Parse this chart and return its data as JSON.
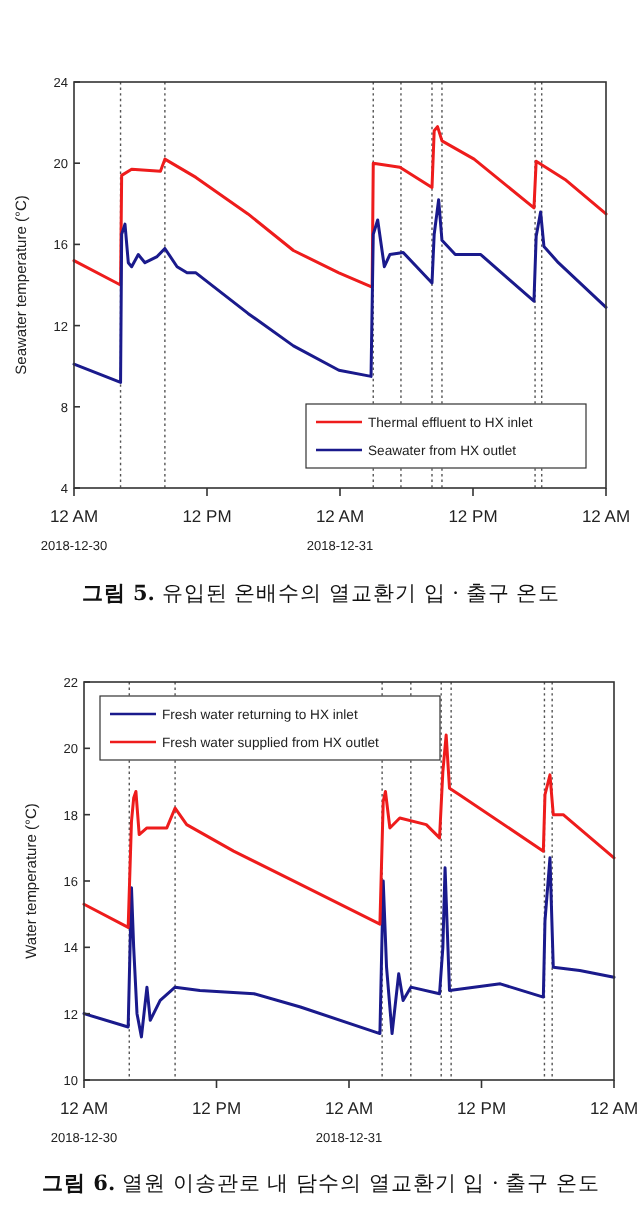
{
  "chart_data": [
    {
      "type": "line",
      "title": "**그림 5.** 유입된 온배수의 열교환기 입 · 출구 온도",
      "ylabel": "Seawater temperature (°C)",
      "xlim": [
        "2018-12-30T00:00",
        "2019-01-01T00:00"
      ],
      "ylim": [
        4,
        24
      ],
      "xticks": [
        {
          "value": "2018-12-30T00:00",
          "label": "12 AM"
        },
        {
          "value": "2018-12-30T12:00",
          "label": "12 PM"
        },
        {
          "value": "2018-12-31T00:00",
          "label": "12 AM"
        },
        {
          "value": "2018-12-31T12:00",
          "label": "12 PM"
        },
        {
          "value": "2019-01-01T00:00",
          "label": "12 AM"
        }
      ],
      "yticks": [
        4,
        8,
        12,
        16,
        20,
        24
      ],
      "legend": "bottom right",
      "marker": "none",
      "line_style": "solid",
      "annotations": [
        "2018-12-30",
        "2018-12-31"
      ],
      "ref_lines": [
        {
          "axis": "x",
          "value": "2018-12-30T04:12",
          "color": "#555555",
          "line_style": "dotted"
        },
        {
          "axis": "x",
          "value": "2018-12-30T08:12",
          "color": "#555555",
          "line_style": "dotted"
        },
        {
          "axis": "x",
          "value": "2018-12-31T03:00",
          "color": "#555555",
          "line_style": "dotted"
        },
        {
          "axis": "x",
          "value": "2018-12-31T05:30",
          "color": "#555555",
          "line_style": "dotted"
        },
        {
          "axis": "x",
          "value": "2018-12-31T08:18",
          "color": "#555555",
          "line_style": "dotted"
        },
        {
          "axis": "x",
          "value": "2018-12-31T09:12",
          "color": "#555555",
          "line_style": "dotted"
        },
        {
          "axis": "x",
          "value": "2018-12-31T17:36",
          "color": "#555555",
          "line_style": "dotted"
        },
        {
          "axis": "x",
          "value": "2018-12-31T18:12",
          "color": "#555555",
          "line_style": "dotted"
        }
      ],
      "series": [
        {
          "name": "Thermal effluent to HX inlet",
          "color": "#ee1c1c",
          "x": [
            "2018-12-30T00:00",
            "2018-12-30T04:12",
            "2018-12-30T04:18",
            "2018-12-30T05:12",
            "2018-12-30T07:48",
            "2018-12-30T08:12",
            "2018-12-30T11:00",
            "2018-12-30T15:42",
            "2018-12-30T19:48",
            "2018-12-30T23:54",
            "2018-12-31T02:54",
            "2018-12-31T03:00",
            "2018-12-31T05:24",
            "2018-12-31T08:18",
            "2018-12-31T08:30",
            "2018-12-31T08:48",
            "2018-12-31T09:12",
            "2018-12-31T12:06",
            "2018-12-31T17:30",
            "2018-12-31T17:42",
            "2018-12-31T20:18",
            "2019-01-01T00:00"
          ],
          "values": [
            15.2,
            14.0,
            19.4,
            19.7,
            19.6,
            20.2,
            19.3,
            17.5,
            15.7,
            14.6,
            13.9,
            20.0,
            19.8,
            18.8,
            21.6,
            21.8,
            21.1,
            20.2,
            17.8,
            20.1,
            19.2,
            17.5
          ]
        },
        {
          "name": "Seawater from HX outlet",
          "color": "#1a1a8c",
          "x": [
            "2018-12-30T00:00",
            "2018-12-30T04:12",
            "2018-12-30T04:18",
            "2018-12-30T04:36",
            "2018-12-30T04:54",
            "2018-12-30T05:12",
            "2018-12-30T05:48",
            "2018-12-30T06:24",
            "2018-12-30T07:30",
            "2018-12-30T08:12",
            "2018-12-30T09:18",
            "2018-12-30T10:12",
            "2018-12-30T11:00",
            "2018-12-30T15:42",
            "2018-12-30T19:48",
            "2018-12-30T23:54",
            "2018-12-31T02:48",
            "2018-12-31T03:00",
            "2018-12-31T03:24",
            "2018-12-31T04:00",
            "2018-12-31T04:30",
            "2018-12-31T05:42",
            "2018-12-31T08:18",
            "2018-12-31T08:30",
            "2018-12-31T08:54",
            "2018-12-31T09:12",
            "2018-12-31T10:24",
            "2018-12-31T12:42",
            "2018-12-31T17:30",
            "2018-12-31T17:42",
            "2018-12-31T18:06",
            "2018-12-31T18:24",
            "2018-12-31T19:42",
            "2019-01-01T00:00"
          ],
          "values": [
            10.1,
            9.2,
            16.5,
            17.0,
            15.1,
            14.9,
            15.5,
            15.1,
            15.4,
            15.8,
            14.9,
            14.6,
            14.6,
            12.6,
            11.0,
            9.8,
            9.5,
            16.5,
            17.2,
            14.9,
            15.5,
            15.6,
            14.1,
            16.5,
            18.2,
            16.2,
            15.5,
            15.5,
            13.2,
            16.4,
            17.6,
            15.9,
            15.1,
            12.9
          ]
        }
      ]
    },
    {
      "type": "line",
      "title": "**그림 6.** 열원 이송관로 내 담수의 열교환기 입 · 출구 온도",
      "ylabel": "Water temperature (°C)",
      "xlim": [
        "2018-12-30T00:00",
        "2019-01-01T00:00"
      ],
      "ylim": [
        10,
        22
      ],
      "xticks": [
        {
          "value": "2018-12-30T00:00",
          "label": "12 AM"
        },
        {
          "value": "2018-12-30T12:00",
          "label": "12 PM"
        },
        {
          "value": "2018-12-31T00:00",
          "label": "12 AM"
        },
        {
          "value": "2018-12-31T12:00",
          "label": "12 PM"
        },
        {
          "value": "2019-01-01T00:00",
          "label": "12 AM"
        }
      ],
      "yticks": [
        10,
        12,
        14,
        16,
        18,
        20,
        22
      ],
      "legend": "top left",
      "marker": "none",
      "line_style": "solid",
      "annotations": [
        "2018-12-30",
        "2018-12-31"
      ],
      "ref_lines": [
        {
          "axis": "x",
          "value": "2018-12-30T04:06",
          "color": "#555555",
          "line_style": "dotted"
        },
        {
          "axis": "x",
          "value": "2018-12-30T08:15",
          "color": "#555555",
          "line_style": "dotted"
        },
        {
          "axis": "x",
          "value": "2018-12-31T03:00",
          "color": "#555555",
          "line_style": "dotted"
        },
        {
          "axis": "x",
          "value": "2018-12-31T05:36",
          "color": "#555555",
          "line_style": "dotted"
        },
        {
          "axis": "x",
          "value": "2018-12-31T08:21",
          "color": "#555555",
          "line_style": "dotted"
        },
        {
          "axis": "x",
          "value": "2018-12-31T09:15",
          "color": "#555555",
          "line_style": "dotted"
        },
        {
          "axis": "x",
          "value": "2018-12-31T17:42",
          "color": "#555555",
          "line_style": "dotted"
        },
        {
          "axis": "x",
          "value": "2018-12-31T18:24",
          "color": "#555555",
          "line_style": "dotted"
        }
      ],
      "series": [
        {
          "name": "Fresh water returning to HX inlet",
          "color": "#1a1a8c",
          "x": [
            "2018-12-30T00:00",
            "2018-12-30T04:00",
            "2018-12-30T04:18",
            "2018-12-30T04:30",
            "2018-12-30T04:48",
            "2018-12-30T05:12",
            "2018-12-30T05:42",
            "2018-12-30T06:00",
            "2018-12-30T06:54",
            "2018-12-30T08:15",
            "2018-12-30T10:30",
            "2018-12-30T15:24",
            "2018-12-30T19:36",
            "2018-12-31T02:48",
            "2018-12-31T03:06",
            "2018-12-31T03:24",
            "2018-12-31T03:54",
            "2018-12-31T04:30",
            "2018-12-31T04:54",
            "2018-12-31T05:36",
            "2018-12-31T08:12",
            "2018-12-31T08:30",
            "2018-12-31T08:42",
            "2018-12-31T09:06",
            "2018-12-31T13:42",
            "2018-12-31T17:36",
            "2018-12-31T17:45",
            "2018-12-31T18:12",
            "2018-12-31T18:30",
            "2018-12-31T20:54",
            "2019-01-01T00:00"
          ],
          "values": [
            12.0,
            11.6,
            15.8,
            14.0,
            12.0,
            11.3,
            12.8,
            11.8,
            12.4,
            12.8,
            12.7,
            12.6,
            12.2,
            11.4,
            16.0,
            13.4,
            11.4,
            13.2,
            12.4,
            12.8,
            12.6,
            14.0,
            16.4,
            12.7,
            12.9,
            12.5,
            14.8,
            16.7,
            13.4,
            13.3,
            13.1
          ]
        },
        {
          "name": "Fresh water supplied from HX outlet",
          "color": "#ee1c1c",
          "x": [
            "2018-12-30T00:00",
            "2018-12-30T04:00",
            "2018-12-30T04:18",
            "2018-12-30T04:30",
            "2018-12-30T04:42",
            "2018-12-30T05:00",
            "2018-12-30T05:42",
            "2018-12-30T07:30",
            "2018-12-30T08:15",
            "2018-12-30T09:18",
            "2018-12-30T13:33",
            "2018-12-30T19:36",
            "2018-12-31T02:48",
            "2018-12-31T03:06",
            "2018-12-31T03:18",
            "2018-12-31T03:42",
            "2018-12-31T04:36",
            "2018-12-31T07:00",
            "2018-12-31T08:12",
            "2018-12-31T08:30",
            "2018-12-31T08:48",
            "2018-12-31T09:06",
            "2018-12-31T10:00",
            "2018-12-31T17:36",
            "2018-12-31T17:45",
            "2018-12-31T18:12",
            "2018-12-31T18:30",
            "2018-12-31T19:24",
            "2019-01-01T00:00"
          ],
          "values": [
            15.3,
            14.6,
            17.8,
            18.5,
            18.7,
            17.4,
            17.6,
            17.6,
            18.2,
            17.7,
            16.9,
            15.9,
            14.7,
            18.4,
            18.7,
            17.6,
            17.9,
            17.7,
            17.3,
            19.3,
            20.4,
            18.8,
            18.6,
            16.9,
            18.6,
            19.2,
            18.0,
            18.0,
            16.7
          ]
        }
      ]
    }
  ]
}
